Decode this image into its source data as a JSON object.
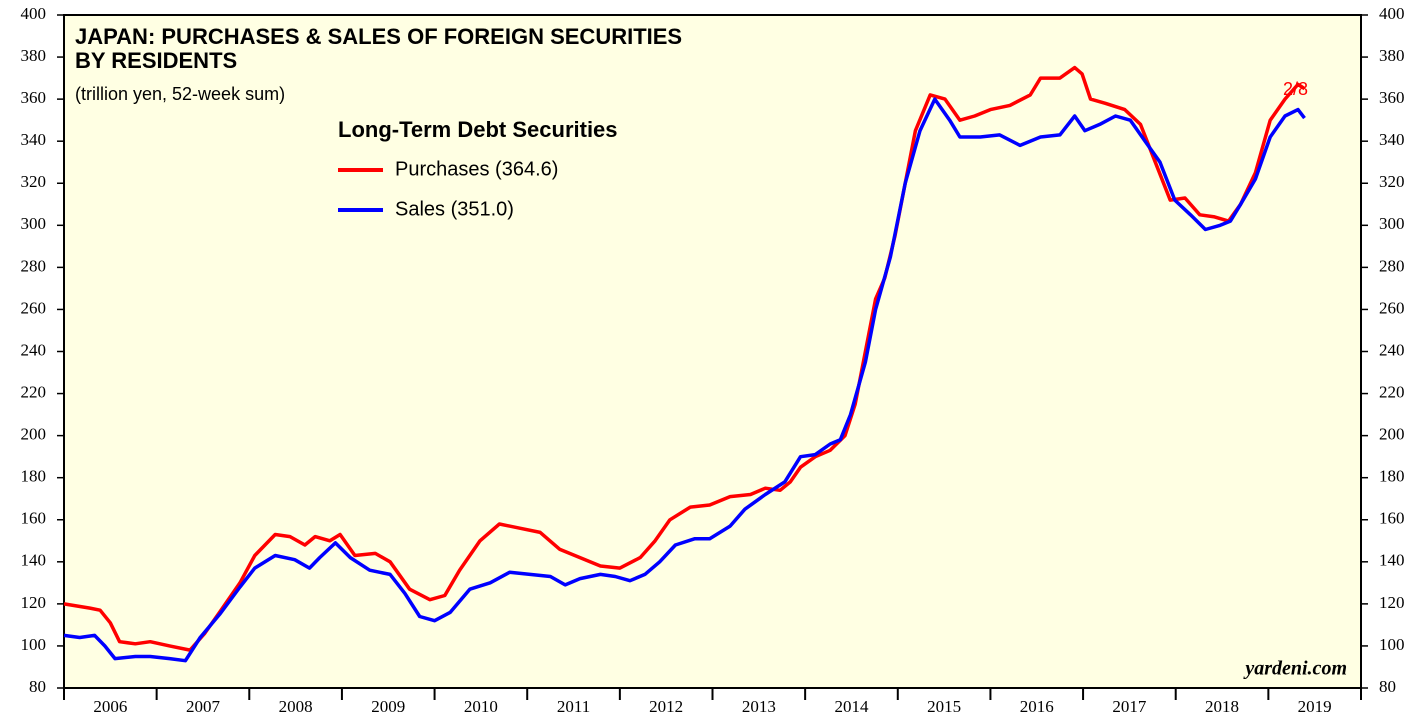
{
  "chart_data": {
    "type": "line",
    "title": [
      "JAPAN: PURCHASES & SALES OF FOREIGN SECURITIES",
      "BY RESIDENTS"
    ],
    "subtitle": "(trillion yen, 52-week sum)",
    "legend_title": "Long-Term Debt Securities",
    "annotation": "2/8",
    "source": "yardeni.com",
    "xlim": [
      2006,
      2020
    ],
    "xticks": [
      2006,
      2007,
      2008,
      2009,
      2010,
      2011,
      2012,
      2013,
      2014,
      2015,
      2016,
      2017,
      2018,
      2019
    ],
    "ylim": [
      80,
      400
    ],
    "yticks": [
      80,
      100,
      120,
      140,
      160,
      180,
      200,
      220,
      240,
      260,
      280,
      300,
      320,
      340,
      360,
      380,
      400
    ],
    "y2lim": [
      80,
      400
    ],
    "y2ticks": [
      80,
      100,
      120,
      140,
      160,
      180,
      200,
      220,
      240,
      260,
      280,
      300,
      320,
      340,
      360,
      380,
      400
    ],
    "series": [
      {
        "name": "Purchases (364.6)",
        "color": "#ff0000",
        "x": [
          2006.0,
          2006.28,
          2006.39,
          2006.5,
          2006.6,
          2006.77,
          2006.93,
          2007.14,
          2007.36,
          2007.52,
          2007.68,
          2007.9,
          2008.06,
          2008.28,
          2008.44,
          2008.6,
          2008.71,
          2008.87,
          2008.98,
          2009.14,
          2009.36,
          2009.52,
          2009.73,
          2009.95,
          2010.11,
          2010.27,
          2010.49,
          2010.7,
          2010.92,
          2011.14,
          2011.35,
          2011.57,
          2011.79,
          2012.0,
          2012.22,
          2012.38,
          2012.54,
          2012.76,
          2012.97,
          2013.19,
          2013.41,
          2013.57,
          2013.73,
          2013.84,
          2013.95,
          2014.11,
          2014.27,
          2014.43,
          2014.54,
          2014.65,
          2014.76,
          2014.86,
          2014.97,
          2015.08,
          2015.19,
          2015.35,
          2015.51,
          2015.67,
          2015.83,
          2016.0,
          2016.21,
          2016.43,
          2016.54,
          2016.75,
          2016.91,
          2016.99,
          2017.08,
          2017.24,
          2017.45,
          2017.62,
          2017.78,
          2017.94,
          2018.1,
          2018.26,
          2018.42,
          2018.57,
          2018.7,
          2018.86,
          2019.02,
          2019.18,
          2019.32,
          2019.39
        ],
        "values": [
          120,
          118,
          117,
          111,
          102,
          101,
          102,
          100,
          98,
          106,
          116,
          130,
          143,
          153,
          152,
          148,
          152,
          150,
          153,
          143,
          144,
          140,
          127,
          122,
          124,
          136,
          150,
          158,
          156,
          154,
          146,
          142,
          138,
          137,
          142,
          150,
          160,
          166,
          167,
          171,
          172,
          175,
          174,
          178,
          185,
          190,
          193,
          200,
          215,
          240,
          265,
          275,
          295,
          320,
          345,
          362,
          360,
          350,
          352,
          355,
          357,
          362,
          370,
          370,
          375,
          372,
          360,
          358,
          355,
          348,
          330,
          312,
          313,
          305,
          304,
          302,
          310,
          325,
          350,
          360,
          367,
          365
        ]
      },
      {
        "name": "Sales (351.0)",
        "color": "#0000ff",
        "x": [
          2006.0,
          2006.17,
          2006.33,
          2006.44,
          2006.55,
          2006.77,
          2006.93,
          2007.14,
          2007.31,
          2007.47,
          2007.68,
          2007.9,
          2008.06,
          2008.28,
          2008.49,
          2008.65,
          2008.76,
          2008.93,
          2009.09,
          2009.3,
          2009.52,
          2009.68,
          2009.84,
          2010.0,
          2010.17,
          2010.38,
          2010.6,
          2010.81,
          2011.03,
          2011.25,
          2011.41,
          2011.57,
          2011.79,
          2011.95,
          2012.11,
          2012.27,
          2012.43,
          2012.6,
          2012.81,
          2012.97,
          2013.19,
          2013.35,
          2013.57,
          2013.78,
          2013.95,
          2014.11,
          2014.27,
          2014.38,
          2014.49,
          2014.65,
          2014.76,
          2014.92,
          2015.08,
          2015.24,
          2015.4,
          2015.56,
          2015.67,
          2015.89,
          2016.1,
          2016.32,
          2016.54,
          2016.75,
          2016.91,
          2017.02,
          2017.18,
          2017.35,
          2017.51,
          2017.67,
          2017.83,
          2017.99,
          2018.16,
          2018.32,
          2018.48,
          2018.59,
          2018.7,
          2018.86,
          2019.02,
          2019.18,
          2019.32,
          2019.39
        ],
        "values": [
          105,
          104,
          105,
          100,
          94,
          95,
          95,
          94,
          93,
          104,
          115,
          128,
          137,
          143,
          141,
          137,
          142,
          149,
          142,
          136,
          134,
          125,
          114,
          112,
          116,
          127,
          130,
          135,
          134,
          133,
          129,
          132,
          134,
          133,
          131,
          134,
          140,
          148,
          151,
          151,
          157,
          165,
          172,
          178,
          190,
          191,
          196,
          198,
          210,
          235,
          260,
          285,
          320,
          345,
          360,
          350,
          342,
          342,
          343,
          338,
          342,
          343,
          352,
          345,
          348,
          352,
          350,
          340,
          330,
          312,
          305,
          298,
          300,
          302,
          310,
          322,
          342,
          352,
          355,
          351
        ]
      }
    ]
  }
}
